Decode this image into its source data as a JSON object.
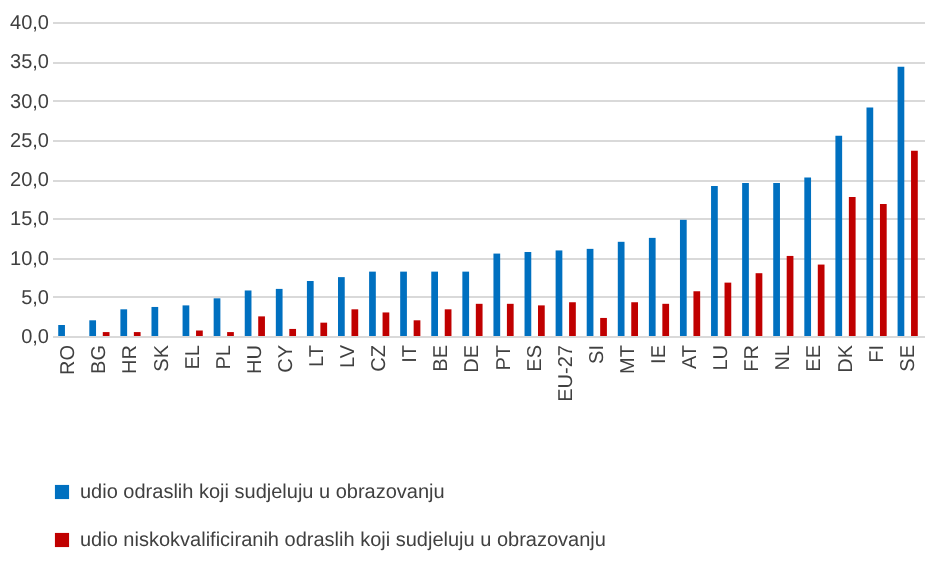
{
  "chart_data": {
    "type": "bar",
    "categories": [
      "RO",
      "BG",
      "HR",
      "SK",
      "EL",
      "PL",
      "HU",
      "CY",
      "LT",
      "LV",
      "CZ",
      "IT",
      "BE",
      "DE",
      "PT",
      "ES",
      "EU-27",
      "SI",
      "MT",
      "IE",
      "AT",
      "LU",
      "FR",
      "NL",
      "EE",
      "DK",
      "FI",
      "SE"
    ],
    "series": [
      {
        "name": "udio odraslih koji sudjeluju u obrazovanju",
        "color": "#0070c0",
        "values": [
          1.4,
          2.0,
          3.4,
          3.7,
          3.9,
          4.8,
          5.8,
          6.0,
          7.0,
          7.5,
          8.2,
          8.2,
          8.2,
          8.2,
          10.5,
          10.7,
          10.9,
          11.1,
          12.0,
          12.5,
          14.8,
          19.1,
          19.5,
          19.5,
          20.2,
          25.5,
          29.1,
          34.3
        ]
      },
      {
        "name": "udio niskokvalificiranih odraslih koji sudjeluju u obrazovanju",
        "color": "#c00000",
        "values": [
          null,
          0.5,
          0.5,
          null,
          0.7,
          0.5,
          2.5,
          0.9,
          1.7,
          3.4,
          3.0,
          2.0,
          3.4,
          4.1,
          4.1,
          3.9,
          4.3,
          2.3,
          4.3,
          4.1,
          5.7,
          6.8,
          8.0,
          10.2,
          9.1,
          17.7,
          16.8,
          23.6
        ]
      }
    ],
    "ylim": [
      0,
      40
    ],
    "yticks": [
      {
        "value": 0,
        "label": "0,0"
      },
      {
        "value": 5,
        "label": "5,0"
      },
      {
        "value": 10,
        "label": "10,0"
      },
      {
        "value": 15,
        "label": "15,0"
      },
      {
        "value": 20,
        "label": "20,0"
      },
      {
        "value": 25,
        "label": "25,0"
      },
      {
        "value": 30,
        "label": "30,0"
      },
      {
        "value": 35,
        "label": "35,0"
      },
      {
        "value": 40,
        "label": "40,0"
      }
    ],
    "grid": "y",
    "legend": "bottom"
  }
}
